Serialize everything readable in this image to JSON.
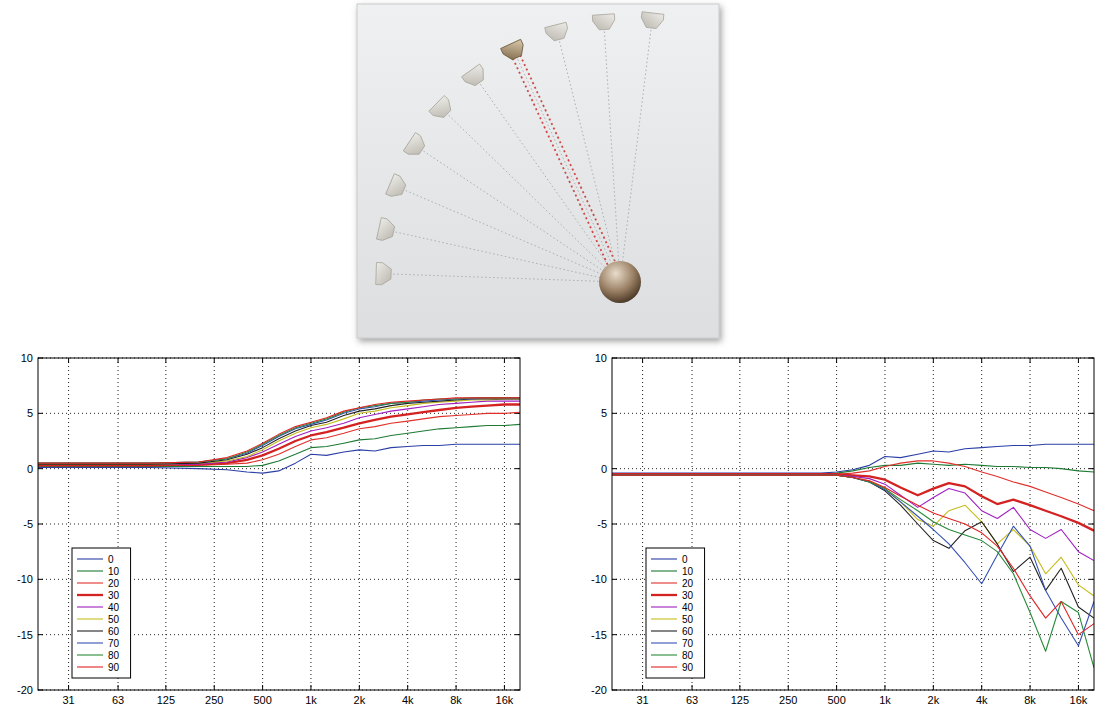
{
  "chart_data": [
    {
      "type": "line",
      "log": "x",
      "grid": true,
      "legend": "lower left",
      "xlim": [
        20,
        20000
      ],
      "xticks": [
        31,
        63,
        125,
        250,
        500,
        {
          "value": 1000,
          "label": "1k"
        },
        {
          "value": 2000,
          "label": "2k"
        },
        {
          "value": 4000,
          "label": "4k"
        },
        {
          "value": 8000,
          "label": "8k"
        },
        {
          "value": 16000,
          "label": "16k"
        }
      ],
      "ylim": [
        -20,
        10
      ],
      "yticks": [
        -20,
        -15,
        -10,
        -5,
        0,
        5,
        10
      ],
      "x": [
        20,
        50,
        100,
        200,
        300,
        400,
        500,
        630,
        800,
        1000,
        1250,
        1600,
        2000,
        2500,
        3150,
        4000,
        5000,
        6300,
        8000,
        10000,
        12500,
        16000,
        20000
      ],
      "series": [
        {
          "name": "0",
          "color": "#2b3fa6",
          "line_style": "solid",
          "values": [
            0.1,
            0.1,
            0.1,
            0.0,
            -0.1,
            -0.3,
            -0.4,
            -0.2,
            0.5,
            1.3,
            1.2,
            1.5,
            1.7,
            1.6,
            1.9,
            2.0,
            2.1,
            2.1,
            2.2,
            2.2,
            2.2,
            2.2,
            2.2
          ]
        },
        {
          "name": "10",
          "color": "#1e7a34",
          "line_style": "solid",
          "values": [
            0.2,
            0.2,
            0.2,
            0.2,
            0.2,
            0.2,
            0.3,
            0.7,
            1.3,
            1.9,
            2.0,
            2.3,
            2.6,
            2.7,
            3.0,
            3.2,
            3.4,
            3.6,
            3.7,
            3.8,
            3.9,
            3.9,
            4.0
          ]
        },
        {
          "name": "20",
          "color": "#e0302a",
          "line_style": "solid",
          "values": [
            0.3,
            0.3,
            0.3,
            0.3,
            0.4,
            0.5,
            0.8,
            1.3,
            2.0,
            2.6,
            2.8,
            3.2,
            3.6,
            3.8,
            4.1,
            4.3,
            4.5,
            4.7,
            4.8,
            4.9,
            5.0,
            5.0,
            5.1
          ]
        },
        {
          "name": "30",
          "color": "#d42222",
          "line_style": "thick",
          "values": [
            0.3,
            0.3,
            0.3,
            0.4,
            0.5,
            0.8,
            1.2,
            1.8,
            2.5,
            3.0,
            3.3,
            3.7,
            4.1,
            4.4,
            4.7,
            4.9,
            5.1,
            5.3,
            5.5,
            5.6,
            5.7,
            5.8,
            5.8
          ]
        },
        {
          "name": "40",
          "color": "#a020c0",
          "line_style": "solid",
          "values": [
            0.4,
            0.4,
            0.4,
            0.4,
            0.6,
            1.0,
            1.5,
            2.2,
            2.9,
            3.4,
            3.7,
            4.1,
            4.6,
            4.9,
            5.2,
            5.4,
            5.6,
            5.8,
            5.9,
            6.0,
            6.1,
            6.1,
            6.1
          ]
        },
        {
          "name": "50",
          "color": "#c4bd1e",
          "line_style": "solid",
          "values": [
            0.4,
            0.4,
            0.4,
            0.5,
            0.7,
            1.1,
            1.7,
            2.5,
            3.2,
            3.7,
            4.0,
            4.5,
            5.0,
            5.2,
            5.5,
            5.7,
            5.9,
            6.0,
            6.1,
            6.2,
            6.2,
            6.3,
            6.3
          ]
        },
        {
          "name": "60",
          "color": "#222222",
          "line_style": "solid",
          "values": [
            0.4,
            0.4,
            0.4,
            0.5,
            0.8,
            1.3,
            1.9,
            2.7,
            3.4,
            3.9,
            4.2,
            4.8,
            5.2,
            5.4,
            5.7,
            5.9,
            6.0,
            6.1,
            6.2,
            6.3,
            6.3,
            6.3,
            6.3
          ]
        },
        {
          "name": "70",
          "color": "#3552b5",
          "line_style": "solid",
          "values": [
            0.5,
            0.5,
            0.5,
            0.6,
            0.9,
            1.4,
            2.1,
            2.9,
            3.6,
            4.0,
            4.4,
            5.0,
            5.4,
            5.6,
            5.9,
            6.0,
            6.1,
            6.2,
            6.3,
            6.3,
            6.4,
            6.4,
            6.4
          ]
        },
        {
          "name": "80",
          "color": "#2a8a3a",
          "line_style": "solid",
          "values": [
            0.5,
            0.5,
            0.5,
            0.6,
            0.9,
            1.5,
            2.2,
            3.0,
            3.7,
            4.1,
            4.5,
            5.1,
            5.5,
            5.7,
            5.9,
            6.0,
            6.2,
            6.3,
            6.3,
            6.4,
            6.4,
            6.4,
            6.4
          ]
        },
        {
          "name": "90",
          "color": "#e02424",
          "line_style": "solid",
          "values": [
            0.5,
            0.5,
            0.5,
            0.6,
            1.0,
            1.6,
            2.3,
            3.1,
            3.8,
            4.2,
            4.6,
            5.2,
            5.5,
            5.8,
            6.0,
            6.1,
            6.2,
            6.3,
            6.4,
            6.4,
            6.4,
            6.4,
            6.4
          ]
        }
      ]
    },
    {
      "type": "line",
      "log": "x",
      "grid": true,
      "legend": "lower left",
      "xlim": [
        20,
        20000
      ],
      "xticks": [
        31,
        63,
        125,
        250,
        500,
        {
          "value": 1000,
          "label": "1k"
        },
        {
          "value": 2000,
          "label": "2k"
        },
        {
          "value": 4000,
          "label": "4k"
        },
        {
          "value": 8000,
          "label": "8k"
        },
        {
          "value": 16000,
          "label": "16k"
        }
      ],
      "ylim": [
        -20,
        10
      ],
      "yticks": [
        -20,
        -15,
        -10,
        -5,
        0,
        5,
        10
      ],
      "x": [
        20,
        50,
        100,
        200,
        300,
        400,
        500,
        630,
        800,
        1000,
        1250,
        1600,
        2000,
        2500,
        3150,
        4000,
        5000,
        6300,
        8000,
        10000,
        12500,
        16000,
        20000
      ],
      "series": [
        {
          "name": "0",
          "color": "#2b3fa6",
          "line_style": "solid",
          "values": [
            -0.4,
            -0.4,
            -0.4,
            -0.4,
            -0.4,
            -0.4,
            -0.3,
            -0.1,
            0.3,
            1.1,
            1.0,
            1.3,
            1.6,
            1.5,
            1.8,
            1.9,
            2.0,
            2.1,
            2.1,
            2.2,
            2.2,
            2.2,
            2.2
          ]
        },
        {
          "name": "10",
          "color": "#1e7a34",
          "line_style": "solid",
          "values": [
            -0.5,
            -0.5,
            -0.5,
            -0.5,
            -0.5,
            -0.5,
            -0.4,
            -0.2,
            0.1,
            0.3,
            0.3,
            0.5,
            0.4,
            0.3,
            0.4,
            0.3,
            0.2,
            0.2,
            0.1,
            0.1,
            0.0,
            -0.2,
            -0.3
          ]
        },
        {
          "name": "20",
          "color": "#e0302a",
          "line_style": "solid",
          "values": [
            -0.5,
            -0.5,
            -0.5,
            -0.5,
            -0.5,
            -0.5,
            -0.5,
            -0.4,
            -0.2,
            0.2,
            0.5,
            0.7,
            0.7,
            0.5,
            0.2,
            -0.3,
            -0.7,
            -1.2,
            -1.6,
            -2.1,
            -2.6,
            -3.2,
            -3.8
          ]
        },
        {
          "name": "30",
          "color": "#d42222",
          "line_style": "thick",
          "values": [
            -0.5,
            -0.5,
            -0.5,
            -0.5,
            -0.5,
            -0.5,
            -0.5,
            -0.6,
            -0.7,
            -1.0,
            -1.7,
            -2.4,
            -1.8,
            -1.3,
            -1.6,
            -2.5,
            -3.2,
            -2.8,
            -3.3,
            -3.8,
            -4.3,
            -4.9,
            -5.6
          ]
        },
        {
          "name": "40",
          "color": "#a020c0",
          "line_style": "solid",
          "values": [
            -0.6,
            -0.6,
            -0.6,
            -0.6,
            -0.6,
            -0.6,
            -0.6,
            -0.7,
            -0.9,
            -1.4,
            -2.4,
            -3.5,
            -2.6,
            -1.8,
            -2.2,
            -3.8,
            -4.5,
            -3.5,
            -5.5,
            -6.3,
            -5.5,
            -7.5,
            -8.3
          ]
        },
        {
          "name": "50",
          "color": "#c4bd1e",
          "line_style": "solid",
          "values": [
            -0.6,
            -0.6,
            -0.6,
            -0.6,
            -0.6,
            -0.6,
            -0.6,
            -0.8,
            -1.1,
            -1.8,
            -3.0,
            -4.6,
            -5.2,
            -3.8,
            -3.3,
            -4.8,
            -6.8,
            -5.5,
            -7.0,
            -9.5,
            -8.0,
            -10.5,
            -11.5
          ]
        },
        {
          "name": "60",
          "color": "#222222",
          "line_style": "solid",
          "values": [
            -0.6,
            -0.6,
            -0.6,
            -0.6,
            -0.6,
            -0.6,
            -0.6,
            -0.8,
            -1.2,
            -2.0,
            -3.3,
            -5.0,
            -6.5,
            -7.2,
            -5.6,
            -4.8,
            -6.8,
            -9.3,
            -8.0,
            -11.0,
            -9.0,
            -12.5,
            -13.5
          ]
        },
        {
          "name": "70",
          "color": "#3552b5",
          "line_style": "solid",
          "values": [
            -0.6,
            -0.6,
            -0.6,
            -0.6,
            -0.6,
            -0.6,
            -0.6,
            -0.8,
            -1.2,
            -1.9,
            -3.0,
            -4.3,
            -5.5,
            -6.8,
            -8.5,
            -10.4,
            -7.8,
            -5.2,
            -7.0,
            -11.0,
            -13.5,
            -16.0,
            -12.0
          ]
        },
        {
          "name": "80",
          "color": "#2a8a3a",
          "line_style": "solid",
          "values": [
            -0.6,
            -0.6,
            -0.6,
            -0.6,
            -0.6,
            -0.6,
            -0.6,
            -0.8,
            -1.2,
            -1.8,
            -2.8,
            -3.8,
            -4.8,
            -5.5,
            -6.0,
            -6.5,
            -7.5,
            -9.5,
            -13.0,
            -16.5,
            -12.0,
            -13.0,
            -18.0
          ]
        },
        {
          "name": "90",
          "color": "#e02424",
          "line_style": "solid",
          "values": [
            -0.6,
            -0.6,
            -0.6,
            -0.6,
            -0.6,
            -0.6,
            -0.6,
            -0.8,
            -1.1,
            -1.7,
            -2.5,
            -3.3,
            -4.0,
            -4.5,
            -5.0,
            -5.8,
            -7.0,
            -9.0,
            -11.5,
            -13.5,
            -12.0,
            -15.0,
            -14.0
          ]
        }
      ]
    }
  ]
}
